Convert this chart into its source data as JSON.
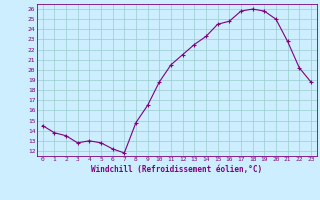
{
  "x": [
    0,
    1,
    2,
    3,
    4,
    5,
    6,
    7,
    8,
    9,
    10,
    11,
    12,
    13,
    14,
    15,
    16,
    17,
    18,
    19,
    20,
    21,
    22,
    23
  ],
  "y": [
    14.5,
    13.8,
    13.5,
    12.8,
    13.0,
    12.8,
    12.2,
    11.8,
    14.8,
    16.5,
    18.8,
    20.5,
    21.5,
    22.5,
    23.3,
    24.5,
    24.8,
    25.8,
    26.0,
    25.8,
    25.0,
    22.8,
    20.2,
    18.8
  ],
  "line_color": "#800080",
  "marker": "+",
  "marker_color": "#800080",
  "bg_color": "#cceeff",
  "grid_color": "#99cccc",
  "axis_color": "#800080",
  "tick_color": "#800080",
  "xlabel": "Windchill (Refroidissement éolien,°C)",
  "xlabel_color": "#800080",
  "xlim": [
    -0.5,
    23.5
  ],
  "ylim": [
    11.5,
    26.5
  ],
  "yticks": [
    12,
    13,
    14,
    15,
    16,
    17,
    18,
    19,
    20,
    21,
    22,
    23,
    24,
    25,
    26
  ],
  "xticks": [
    0,
    1,
    2,
    3,
    4,
    5,
    6,
    7,
    8,
    9,
    10,
    11,
    12,
    13,
    14,
    15,
    16,
    17,
    18,
    19,
    20,
    21,
    22,
    23
  ]
}
